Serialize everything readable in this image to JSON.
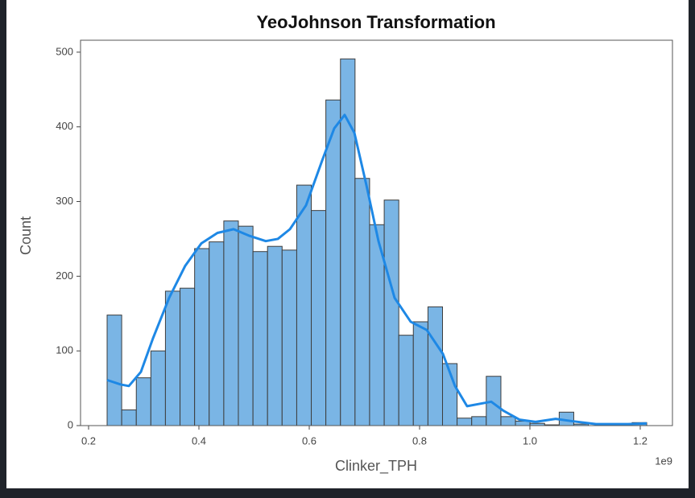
{
  "chart_data": {
    "type": "histogram",
    "title": "YeoJohnson Transformation",
    "xlabel": "Clinker_TPH",
    "ylabel": "Count",
    "x_offset_label": "1e9",
    "bins": [
      0.2336,
      0.26,
      0.2865,
      0.3129,
      0.3393,
      0.3658,
      0.3922,
      0.4186,
      0.4451,
      0.4715,
      0.498,
      0.5244,
      0.5508,
      0.5773,
      0.6037,
      0.6301,
      0.6566,
      0.683,
      0.7094,
      0.7359,
      0.7623,
      0.7887,
      0.8152,
      0.8416,
      0.868,
      0.8945,
      0.9209,
      0.9474,
      0.9738,
      1.0002,
      1.0267,
      1.0531,
      1.0795,
      1.106,
      1.1324,
      1.1588,
      1.1853,
      1.2117
    ],
    "counts": [
      148,
      21,
      64,
      100,
      180,
      184,
      237,
      246,
      274,
      267,
      233,
      240,
      235,
      322,
      288,
      436,
      491,
      331,
      269,
      302,
      121,
      139,
      159,
      83,
      10,
      12,
      66,
      12,
      6,
      3,
      1,
      18,
      2,
      0,
      1,
      1,
      4
    ],
    "color": "#7ab5e5",
    "kde": {
      "color": "#1e88e5",
      "x": [
        0.2336,
        0.2584,
        0.273,
        0.2949,
        0.3168,
        0.346,
        0.3752,
        0.4044,
        0.4336,
        0.4628,
        0.492,
        0.5212,
        0.5431,
        0.565,
        0.5942,
        0.6234,
        0.6453,
        0.6642,
        0.6818,
        0.7036,
        0.7255,
        0.7547,
        0.7839,
        0.8131,
        0.8423,
        0.8642,
        0.8861,
        0.908,
        0.9299,
        0.9518,
        0.981,
        1.0102,
        1.0467,
        1.0759,
        1.1197,
        1.1781,
        1.2117
      ],
      "values": [
        61,
        55,
        53,
        72,
        117,
        171,
        214,
        244,
        258,
        263,
        254,
        247,
        250,
        263,
        295,
        355,
        398,
        416,
        392,
        322,
        247,
        171,
        139,
        128,
        96,
        53,
        26,
        29,
        32,
        20,
        8,
        5,
        9,
        6,
        2,
        2,
        3
      ]
    },
    "xlim": [
      0.1854,
      1.2584
    ],
    "ylim": [
      0,
      516
    ],
    "xticks": [
      0.2,
      0.4,
      0.6,
      0.8,
      {
        "value": 1,
        "label": "1.0"
      },
      1.2
    ],
    "yticks": [
      0,
      100,
      200,
      300,
      400,
      500
    ]
  }
}
